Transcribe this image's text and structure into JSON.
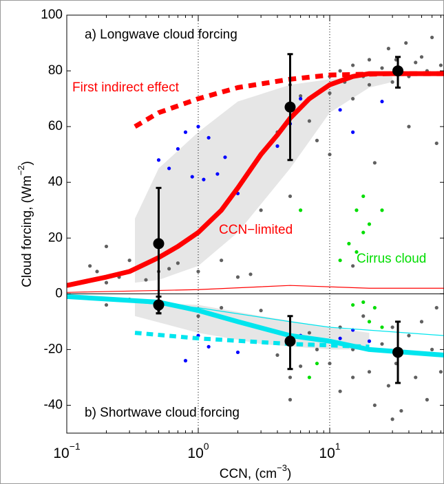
{
  "chart_data": {
    "type": "scatter",
    "texts": [
      "a) Longwave cloud forcing",
      "b) Shortwave cloud forcing"
    ],
    "annotations": [
      {
        "text": "First indirect effect",
        "color": "#ff0000"
      },
      {
        "text": "CCN−limited",
        "color": "#ff0000"
      },
      {
        "text": "Cirrus cloud",
        "color": "#00dd00"
      }
    ],
    "ylabel": [
      "Cloud forcing, (Wm",
      "−2",
      ")"
    ],
    "xlabel": [
      "CCN, (cm",
      "−3",
      ")"
    ],
    "xscale": "log",
    "xlim": [
      0.1,
      74
    ],
    "ylim": [
      -50,
      100
    ],
    "xticks": [
      {
        "value": 0.1,
        "label": "10",
        "sup": "−1"
      },
      {
        "value": 1,
        "label": "10",
        "sup": "0"
      },
      {
        "value": 10,
        "label": "10",
        "sup": "1"
      }
    ],
    "yticks": [
      -40,
      -20,
      0,
      20,
      40,
      60,
      80,
      100
    ],
    "xgrid": [
      1,
      10
    ],
    "bands": [
      {
        "color": "#e6e6e6",
        "x": [
          0.33,
          0.5,
          1,
          2,
          5,
          10,
          20,
          30
        ],
        "upper": [
          27,
          45,
          58,
          69,
          75,
          77,
          78,
          78
        ],
        "lower": [
          4,
          5,
          10,
          22,
          45,
          65,
          74,
          76
        ]
      },
      {
        "color": "#e6e6e6",
        "x": [
          0.33,
          1,
          3,
          10,
          20
        ],
        "upper": [
          -3,
          -4,
          -8,
          -12,
          -14
        ],
        "lower": [
          -8,
          -14,
          -18,
          -20,
          -20
        ]
      }
    ],
    "series": [
      {
        "style": "points",
        "color": "#606060",
        "x": [
          0.15,
          0.17,
          0.2,
          0.2,
          0.25,
          0.3,
          0.4,
          0.5,
          0.6,
          0.7,
          1.0,
          1.5,
          2,
          2.5,
          3,
          4,
          5,
          6,
          7,
          8,
          10,
          10,
          12,
          13,
          15,
          15,
          18,
          20,
          20,
          22,
          25,
          28,
          30,
          32,
          35,
          38,
          40,
          45,
          50,
          55,
          60,
          65,
          70,
          10,
          5,
          15,
          40,
          0.2,
          0.3,
          0.5,
          0.8,
          1,
          1.5,
          2,
          3,
          4,
          5,
          6,
          7,
          8,
          10,
          12,
          12,
          15,
          15,
          18,
          20,
          22,
          25,
          28,
          30,
          32,
          35,
          40,
          45,
          50,
          55,
          60,
          65,
          70,
          5,
          30
        ],
        "values": [
          10,
          8,
          17,
          4,
          6,
          12,
          5,
          8,
          9,
          11,
          8,
          12,
          6,
          7,
          30,
          58,
          75,
          71,
          62,
          55,
          78,
          72,
          80,
          76,
          82,
          70,
          78,
          84,
          75,
          47,
          81,
          88,
          76,
          84,
          80,
          90,
          78,
          83,
          85,
          80,
          92,
          54,
          82,
          50,
          35,
          10,
          60,
          -4,
          -2,
          -6,
          -5,
          -8,
          -5,
          -10,
          -6,
          -22,
          -30,
          -26,
          -14,
          -20,
          -25,
          -12,
          -35,
          -20,
          -30,
          -8,
          -28,
          -40,
          -18,
          -33,
          -45,
          -25,
          -42,
          -15,
          -30,
          -10,
          -38,
          -20,
          -5,
          -28,
          -38,
          -12
        ]
      },
      {
        "style": "points",
        "color": "#0000ff",
        "x": [
          0.5,
          0.6,
          0.7,
          0.8,
          0.9,
          1,
          1.1,
          1.2,
          1.4,
          1.6,
          2,
          4,
          5,
          6,
          12,
          15,
          25,
          0.8,
          1,
          1.2,
          2,
          6,
          12,
          15,
          20
        ],
        "values": [
          48,
          45,
          52,
          58,
          42,
          60,
          41,
          56,
          43,
          49,
          36,
          53,
          61,
          70,
          66,
          58,
          69,
          -24,
          -15,
          -19,
          -21,
          -15,
          -16,
          -13,
          -17
        ]
      },
      {
        "style": "points",
        "color": "#00dd00",
        "x": [
          6,
          16,
          18,
          20,
          25,
          12,
          14,
          16,
          18,
          15,
          18,
          20,
          22,
          7,
          8,
          25
        ],
        "values": [
          30,
          30,
          35,
          25,
          30,
          12,
          18,
          15,
          22,
          -4,
          -3,
          -10,
          -5,
          -30,
          -25,
          -12
        ]
      },
      {
        "style": "line",
        "color": "#ff0000",
        "width": 7,
        "x": [
          0.1,
          0.2,
          0.3,
          0.5,
          0.7,
          1,
          1.5,
          2,
          3,
          4,
          5,
          7,
          10,
          15,
          20,
          40,
          74
        ],
        "values": [
          3,
          6,
          8,
          13,
          17,
          22,
          30,
          38,
          50,
          57,
          63,
          70,
          75,
          78,
          79,
          79,
          79
        ]
      },
      {
        "style": "dashed",
        "color": "#ff0000",
        "width": 7,
        "x": [
          0.33,
          0.5,
          1,
          2,
          5,
          10,
          30,
          74
        ],
        "values": [
          60,
          65,
          70,
          74,
          77,
          78.5,
          79,
          79
        ]
      },
      {
        "style": "line",
        "color": "#ff0000",
        "width": 1.2,
        "x": [
          0.1,
          1,
          5,
          20,
          74
        ],
        "values": [
          0.5,
          1.5,
          3,
          2,
          2
        ]
      },
      {
        "style": "line",
        "color": "#00e5ee",
        "width": 7,
        "x": [
          0.1,
          0.5,
          1,
          2,
          5,
          10,
          20,
          74
        ],
        "values": [
          -1,
          -3,
          -6,
          -10,
          -15,
          -17,
          -20,
          -22
        ]
      },
      {
        "style": "line",
        "color": "#00e5ee",
        "width": 1.2,
        "x": [
          0.1,
          1,
          5,
          10,
          74
        ],
        "values": [
          -1,
          -5,
          -10,
          -12,
          -15
        ]
      },
      {
        "style": "dashed",
        "color": "#00e5ee",
        "width": 6,
        "x": [
          0.33,
          1,
          5,
          20
        ],
        "values": [
          -14,
          -16,
          -18,
          -19
        ]
      }
    ],
    "errorbars": {
      "color": "#000000",
      "x": [
        0.5,
        5,
        33,
        0.5,
        5,
        33
      ],
      "values": [
        18,
        67,
        80,
        -4,
        -17,
        -21
      ],
      "lower": [
        -7,
        48,
        74,
        -7,
        -27,
        -32
      ],
      "upper": [
        38,
        86,
        85,
        -1,
        -8,
        -10
      ]
    }
  }
}
